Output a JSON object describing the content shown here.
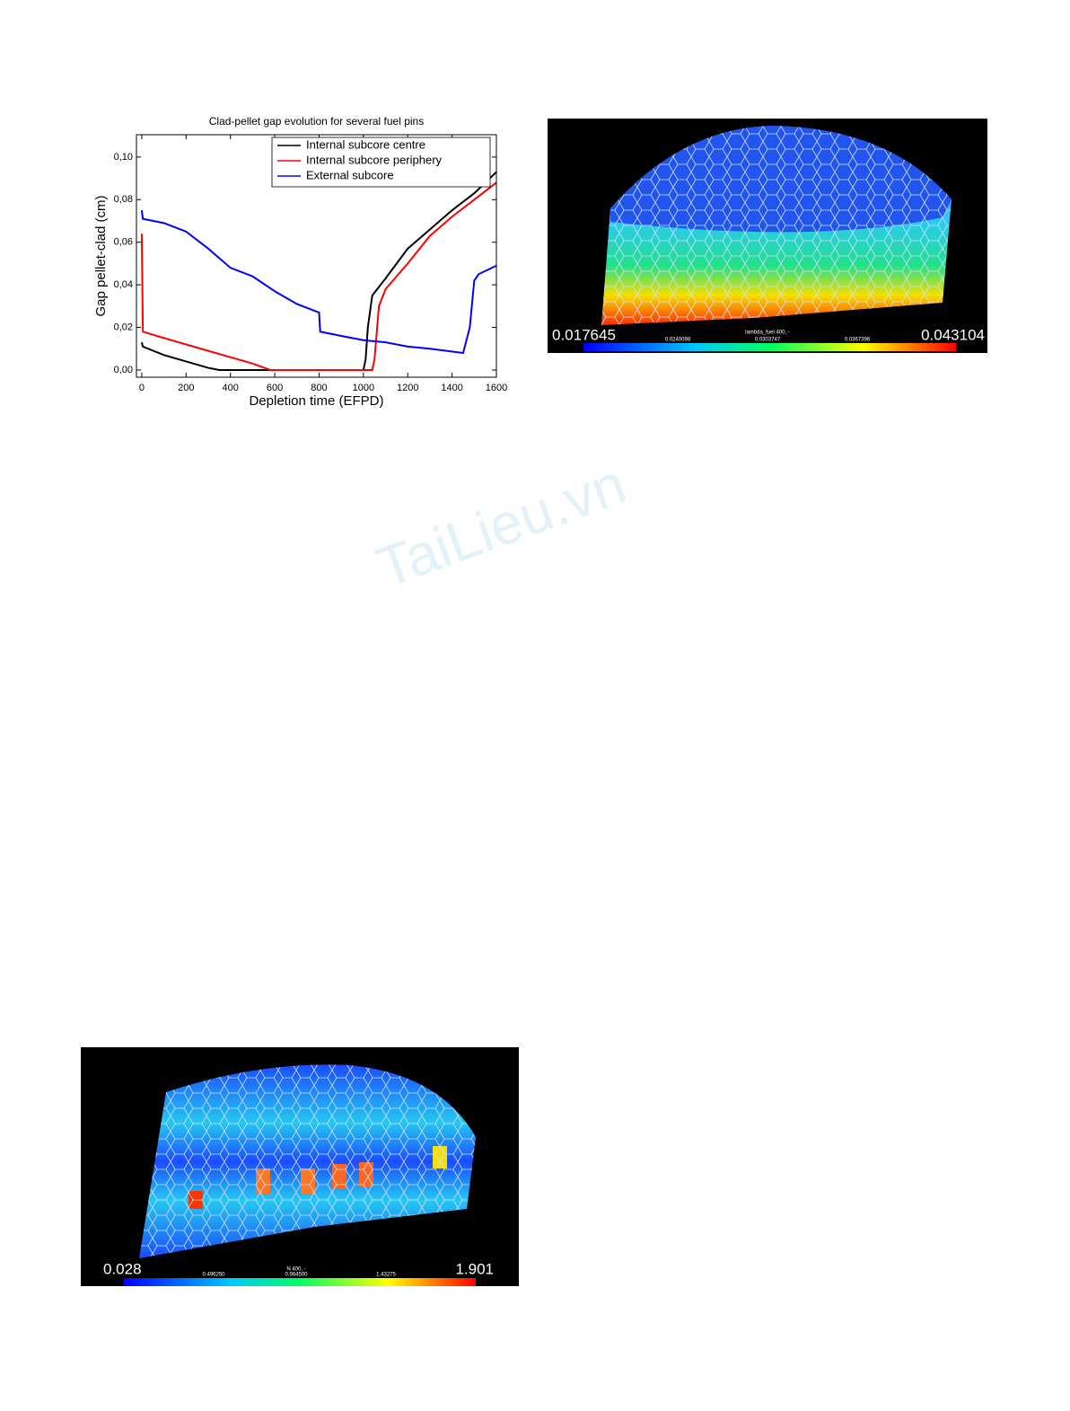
{
  "chart_data": {
    "type": "line",
    "title": "Clad-pellet gap evolution for several fuel pins",
    "x_label": "Depletion time (EFPD)",
    "y_label": "Gap pellet-clad (cm)",
    "xlim": [
      -24,
      1600
    ],
    "ylim": [
      -0.0034,
      0.1105
    ],
    "xticks": [
      0,
      200,
      400,
      600,
      800,
      1000,
      1200,
      1400,
      1600
    ],
    "yticks": [
      {
        "value": 0,
        "label": "0,00"
      },
      {
        "value": 0.02,
        "label": "0,02"
      },
      {
        "value": 0.04,
        "label": "0,04"
      },
      {
        "value": 0.06,
        "label": "0,06"
      },
      {
        "value": 0.08,
        "label": "0,08"
      },
      {
        "value": 0.1,
        "label": "0,10"
      }
    ],
    "legend": "upper right",
    "grid": false,
    "series": [
      {
        "name": "Internal subcore centre",
        "color": "#000000",
        "x": [
          0,
          5,
          100,
          200,
          300,
          350,
          800,
          1000,
          1010,
          1020,
          1040,
          1100,
          1200,
          1300,
          1400,
          1500,
          1600
        ],
        "values": [
          0.013,
          0.011,
          0.007,
          0.004,
          0.001,
          0,
          0,
          0,
          0.005,
          0.02,
          0.035,
          0.043,
          0.057,
          0.066,
          0.075,
          0.083,
          0.093
        ]
      },
      {
        "name": "Internal subcore periphery",
        "color": "#ff0000",
        "x": [
          0,
          5,
          100,
          200,
          300,
          400,
          500,
          580,
          1040,
          1050,
          1070,
          1100,
          1200,
          1300,
          1400,
          1500,
          1600
        ],
        "values": [
          0.064,
          0.018,
          0.015,
          0.012,
          0.009,
          0.006,
          0.003,
          0,
          0,
          0.005,
          0.03,
          0.038,
          0.05,
          0.063,
          0.072,
          0.08,
          0.088
        ]
      },
      {
        "name": "External subcore",
        "color": "#0000ff",
        "x": [
          0,
          5,
          100,
          200,
          300,
          400,
          500,
          600,
          700,
          800,
          805,
          900,
          1000,
          1100,
          1200,
          1300,
          1450,
          1480,
          1500,
          1520,
          1600
        ],
        "values": [
          0.075,
          0.071,
          0.069,
          0.065,
          0.057,
          0.048,
          0.044,
          0.037,
          0.031,
          0.027,
          0.018,
          0.016,
          0.014,
          0.013,
          0.011,
          0.01,
          0.008,
          0.02,
          0.042,
          0.045,
          0.049
        ]
      }
    ]
  },
  "figures": [
    {
      "colorbar": {
        "min": "0.017645",
        "max": "0.043104",
        "title": "lambda_fuel 400, -",
        "ticks": [
          "0.0240098",
          "0.0303747",
          "0.0367396"
        ]
      }
    },
    {
      "colorbar": {
        "min": "0.028",
        "max": "1.901",
        "title": "N 400, -",
        "ticks": [
          "0.496250",
          "0.964500",
          "1.43275"
        ]
      }
    }
  ],
  "watermark": "TaiLieu.vn"
}
